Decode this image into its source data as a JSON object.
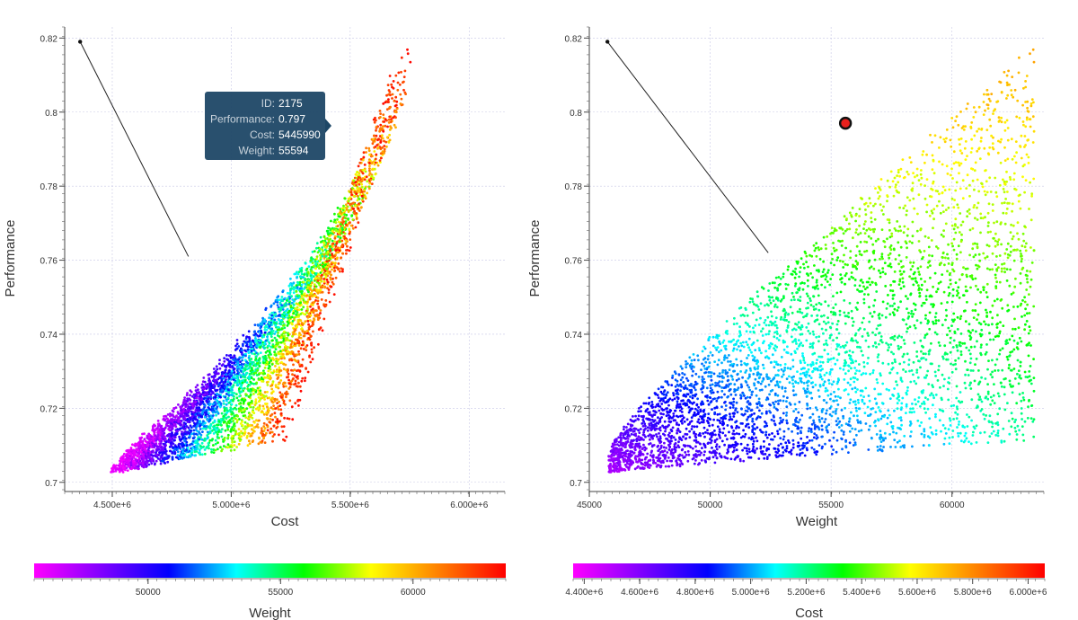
{
  "chart_data": [
    {
      "type": "scatter",
      "xlabel": "Cost",
      "ylabel": "Performance",
      "xlim": [
        4300000,
        6150000
      ],
      "ylim": [
        0.698,
        0.823
      ],
      "xticks": [
        4500000,
        5000000,
        5500000,
        6000000
      ],
      "xtick_labels": [
        "4.500e+6",
        "5.000e+6",
        "5.500e+6",
        "6.000e+6"
      ],
      "yticks": [
        0.7,
        0.72,
        0.74,
        0.76,
        0.78,
        0.8,
        0.82
      ],
      "ytick_labels": [
        "0.7",
        "0.72",
        "0.74",
        "0.76",
        "0.78",
        "0.8",
        "0.82"
      ],
      "color_by": "Weight",
      "grid": true,
      "annotation_line": {
        "from": [
          4365000,
          0.819
        ],
        "to": [
          4820000,
          0.761
        ]
      },
      "tooltip": {
        "rows": [
          {
            "key": "ID:",
            "value": "2175"
          },
          {
            "key": "Performance:",
            "value": "0.797"
          },
          {
            "key": "Cost:",
            "value": "5445990"
          },
          {
            "key": "Weight:",
            "value": "55594"
          }
        ],
        "anchor": [
          5445990,
          0.797
        ]
      },
      "colorbar": {
        "label": "Weight",
        "range": [
          45700,
          63500
        ],
        "ticks": [
          50000,
          55000,
          60000
        ],
        "tick_labels": [
          "50000",
          "55000",
          "60000"
        ]
      }
    },
    {
      "type": "scatter",
      "xlabel": "Weight",
      "ylabel": "Performance",
      "xlim": [
        45000,
        63800
      ],
      "ylim": [
        0.698,
        0.823
      ],
      "xticks": [
        45000,
        50000,
        55000,
        60000
      ],
      "xtick_labels": [
        "45000",
        "50000",
        "55000",
        "60000"
      ],
      "yticks": [
        0.7,
        0.72,
        0.74,
        0.76,
        0.78,
        0.8,
        0.82
      ],
      "ytick_labels": [
        "0.7",
        "0.72",
        "0.74",
        "0.76",
        "0.78",
        "0.8",
        "0.82"
      ],
      "color_by": "Cost",
      "grid": true,
      "annotation_line": {
        "from": [
          45750,
          0.819
        ],
        "to": [
          52400,
          0.762
        ]
      },
      "highlight_point": [
        55594,
        0.797
      ],
      "colorbar": {
        "label": "Cost",
        "range": [
          4360000,
          6060000
        ],
        "ticks": [
          4400000,
          4600000,
          4800000,
          5000000,
          5200000,
          5400000,
          5600000,
          5800000,
          6000000
        ],
        "tick_labels": [
          "4.400e+6",
          "4.600e+6",
          "4.800e+6",
          "5.000e+6",
          "5.200e+6",
          "5.400e+6",
          "5.600e+6",
          "5.800e+6",
          "6.000e+6"
        ]
      }
    }
  ],
  "colormap": [
    "#ff00ff",
    "#8000ff",
    "#0000ff",
    "#00ffff",
    "#00ff00",
    "#ffff00",
    "#ff8000",
    "#ff0000"
  ]
}
